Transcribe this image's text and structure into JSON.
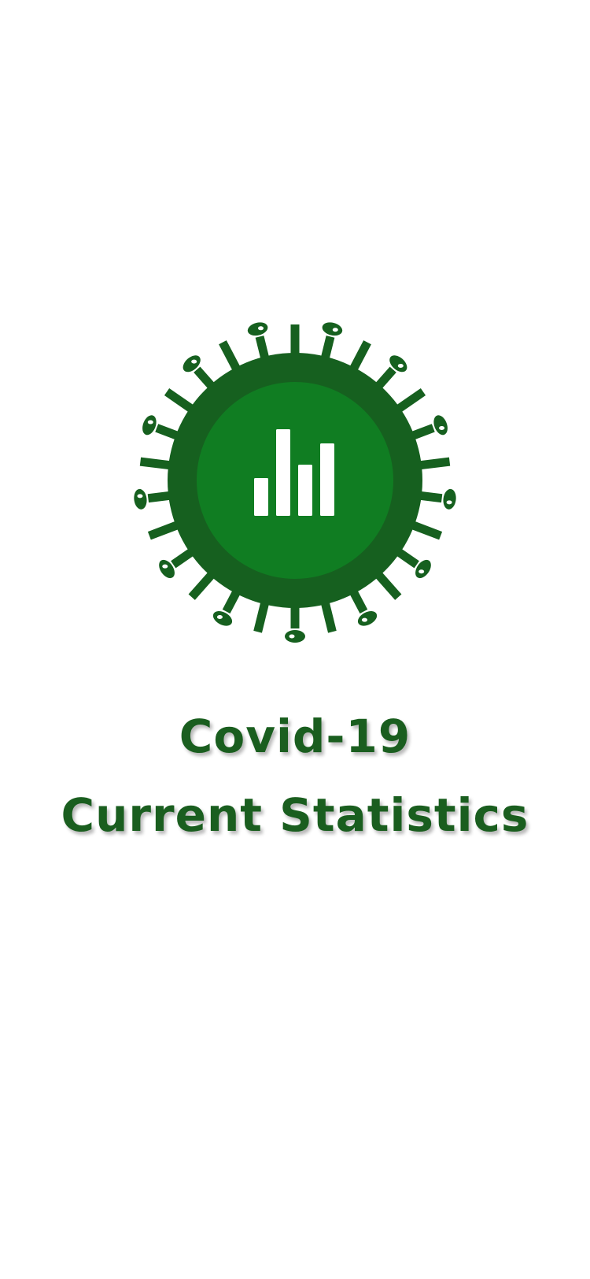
{
  "splash": {
    "logo_icon": "virus-stats-icon",
    "title_line1": "Covid-19",
    "title_line2": "Current Statistics"
  },
  "colors": {
    "background": "#ffffff",
    "virus_outer": "#16601f",
    "virus_inner": "#107d22",
    "bars": "#ffffff",
    "title_text": "#1a5e1f"
  }
}
